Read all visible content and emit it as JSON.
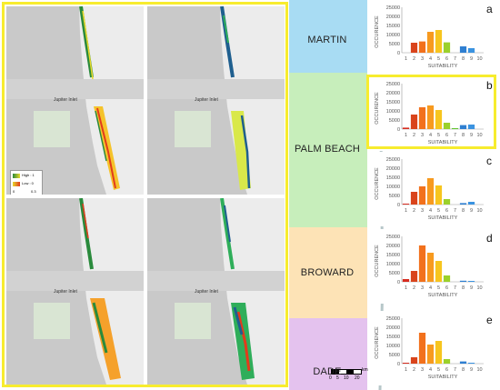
{
  "map_panels": {
    "inlet_label": "Jupiter Inlet",
    "legend": {
      "high_label": "High : 1",
      "low_label": "Low : 0",
      "scale_ticks": [
        "0",
        "0.3"
      ]
    },
    "colors": {
      "water": "#c9c9c9",
      "land": "#ececec",
      "highlight_border": "#f7ec2e"
    }
  },
  "regions": [
    {
      "name": "MARTIN",
      "color": "#a8dcf3"
    },
    {
      "name": "PALM BEACH",
      "color": "#c7eebb"
    },
    {
      "name": "BROWARD",
      "color": "#fde3b6"
    },
    {
      "name": "DADE",
      "color": "#e4c2ee"
    }
  ],
  "scale_bar": {
    "ticks": [
      "0",
      "5",
      "10",
      "20"
    ],
    "unit": "km"
  },
  "chart_data": [
    {
      "type": "bar",
      "panel_letter": "a",
      "xlabel": "SUITABILITY",
      "ylabel": "OCCURENCE",
      "yticks": [
        "0",
        "5000",
        "10000",
        "15000",
        "20000",
        "25000"
      ],
      "ylim": [
        0,
        25000
      ],
      "categories": [
        "1",
        "2",
        "3",
        "4",
        "5",
        "6",
        "7",
        "8",
        "9",
        "10"
      ],
      "values": [
        0,
        5500,
        6200,
        11500,
        12500,
        5700,
        0,
        3500,
        2500,
        0
      ]
    },
    {
      "type": "bar",
      "panel_letter": "b",
      "xlabel": "SUITABILITY",
      "ylabel": "OCCURENCE",
      "yticks": [
        "0",
        "5000",
        "10000",
        "15000",
        "20000",
        "25000"
      ],
      "ylim": [
        0,
        25000
      ],
      "categories": [
        "1",
        "2",
        "3",
        "4",
        "5",
        "6",
        "7",
        "8",
        "9",
        "10"
      ],
      "values": [
        800,
        8000,
        12000,
        13000,
        10500,
        3500,
        500,
        2200,
        2500,
        0
      ]
    },
    {
      "type": "bar",
      "panel_letter": "c",
      "xlabel": "SUITABILITY",
      "ylabel": "OCCURENCE",
      "yticks": [
        "0",
        "5000",
        "10000",
        "15000",
        "20000",
        "25000"
      ],
      "ylim": [
        0,
        25000
      ],
      "categories": [
        "1",
        "2",
        "3",
        "4",
        "5",
        "6",
        "7",
        "8",
        "9",
        "10"
      ],
      "values": [
        500,
        7000,
        10000,
        14500,
        10500,
        3000,
        0,
        800,
        1500,
        0
      ]
    },
    {
      "type": "bar",
      "panel_letter": "d",
      "xlabel": "SUITABILITY",
      "ylabel": "OCCURENCE",
      "yticks": [
        "0",
        "5000",
        "10000",
        "15000",
        "20000",
        "25000"
      ],
      "ylim": [
        0,
        25000
      ],
      "categories": [
        "1",
        "2",
        "3",
        "4",
        "5",
        "6",
        "7",
        "8",
        "9",
        "10"
      ],
      "values": [
        1500,
        6000,
        20000,
        16000,
        11500,
        3500,
        0,
        600,
        500,
        0
      ]
    },
    {
      "type": "bar",
      "panel_letter": "e",
      "xlabel": "SUITABILITY",
      "ylabel": "OCCURENCE",
      "yticks": [
        "0",
        "5000",
        "10000",
        "15000",
        "20000",
        "25000"
      ],
      "ylim": [
        0,
        25000
      ],
      "categories": [
        "1",
        "2",
        "3",
        "4",
        "5",
        "6",
        "7",
        "8",
        "9",
        "10"
      ],
      "values": [
        500,
        3500,
        17000,
        10500,
        12500,
        2500,
        0,
        1200,
        500,
        0
      ]
    }
  ],
  "bar_colors": [
    "#d62b1f",
    "#d9441c",
    "#f2711c",
    "#f79a1f",
    "#f7c51e",
    "#9bd12b",
    "#5fc42d",
    "#2f7fd1",
    "#3b93e0",
    "#1c5fb5"
  ]
}
